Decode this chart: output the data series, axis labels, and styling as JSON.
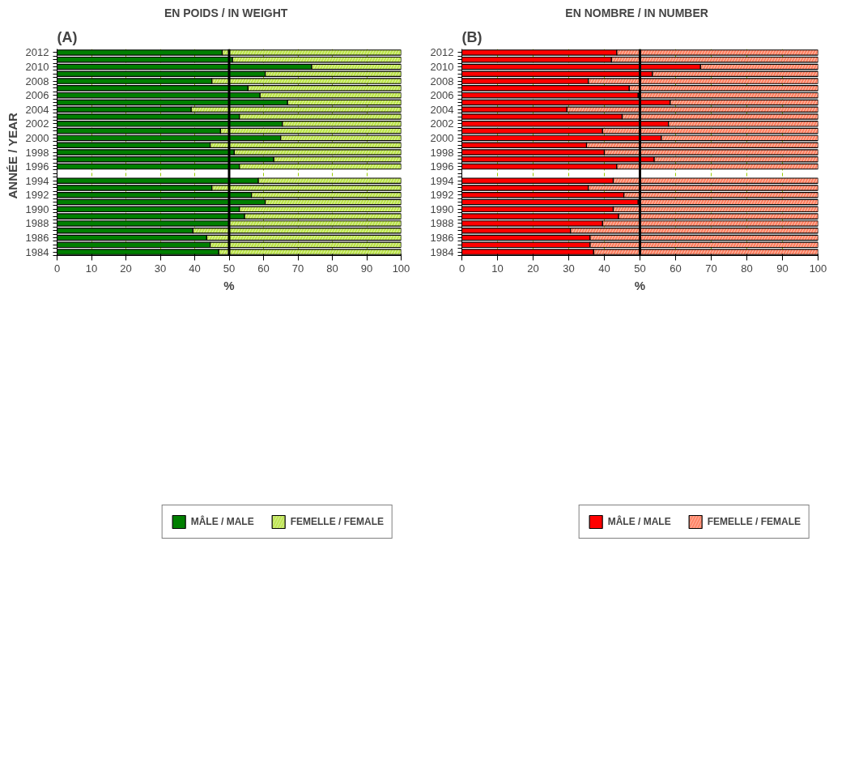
{
  "chart_data": [
    {
      "type": "bar",
      "orientation": "horizontal",
      "stacked": true,
      "title": "EN POIDS  /  IN WEIGHT",
      "xlabel": "%",
      "ylabel": "ANNÉE  /  YEAR",
      "annotations": [
        "(A)"
      ],
      "categories": [
        "2012",
        null,
        "2010",
        null,
        "2008",
        null,
        "2006",
        null,
        "2004",
        null,
        "2002",
        null,
        "2000",
        null,
        "1998",
        null,
        "1996",
        null,
        "1994",
        null,
        "1992",
        null,
        "1990",
        null,
        "1988",
        null,
        "1986",
        null,
        "1984"
      ],
      "series": [
        {
          "name": "MÂLE / MALE",
          "color": "#007f00",
          "values": [
            48,
            51,
            74,
            60.5,
            45,
            55.5,
            59,
            67,
            39,
            53,
            65.5,
            47.5,
            65,
            44.5,
            51.5,
            63,
            53,
            null,
            58.5,
            45,
            56.5,
            60.5,
            53,
            54.5,
            50,
            39.5,
            43.5,
            44.5,
            47
          ]
        },
        {
          "name": "FEMELLE / FEMALE",
          "color": "#bbe34a",
          "values": [
            52,
            49,
            26,
            39.5,
            55,
            44.5,
            41,
            33,
            61,
            47,
            34.5,
            52.5,
            35,
            55.5,
            48.5,
            37,
            47,
            null,
            41.5,
            55,
            43.5,
            39.5,
            47,
            45.5,
            50,
            60.5,
            56.5,
            55.5,
            53
          ]
        }
      ],
      "xlim": [
        0,
        100
      ],
      "xticks": [
        0,
        10,
        20,
        30,
        40,
        50,
        60,
        70,
        80,
        90,
        100
      ],
      "grid": "x",
      "legend": "bottom",
      "ref_lines": [
        {
          "axis": "x",
          "value": 50,
          "color": "#000000"
        }
      ]
    },
    {
      "type": "bar",
      "orientation": "horizontal",
      "stacked": true,
      "title": "EN NOMBRE  /  IN NUMBER",
      "xlabel": "%",
      "annotations": [
        "(B)"
      ],
      "categories": [
        "2012",
        null,
        "2010",
        null,
        "2008",
        null,
        "2006",
        null,
        "2004",
        null,
        "2002",
        null,
        "2000",
        null,
        "1998",
        null,
        "1996",
        null,
        "1994",
        null,
        "1992",
        null,
        "1990",
        null,
        "1988",
        null,
        "1986",
        null,
        "1984"
      ],
      "series": [
        {
          "name": "MÂLE / MALE",
          "color": "#ff0000",
          "values": [
            43.5,
            42,
            67,
            53.5,
            35.5,
            47,
            49.5,
            58.5,
            29.5,
            45,
            58,
            39.5,
            56,
            35,
            40,
            54,
            43.5,
            null,
            42.5,
            35.5,
            45.5,
            49.5,
            42.5,
            44,
            39.5,
            30.5,
            36,
            36,
            37
          ]
        },
        {
          "name": "FEMELLE / FEMALE",
          "color": "#ff7f60",
          "values": [
            56.5,
            58,
            33,
            46.5,
            64.5,
            53,
            50.5,
            41.5,
            70.5,
            55,
            42,
            60.5,
            44,
            65,
            60,
            46,
            56.5,
            null,
            57.5,
            64.5,
            54.5,
            50.5,
            57.5,
            56,
            60.5,
            69.5,
            64,
            64,
            63
          ]
        }
      ],
      "xlim": [
        0,
        100
      ],
      "xticks": [
        0,
        10,
        20,
        30,
        40,
        50,
        60,
        70,
        80,
        90,
        100
      ],
      "grid": "x",
      "legend": "bottom",
      "ref_lines": [
        {
          "axis": "x",
          "value": 50,
          "color": "#000000"
        }
      ]
    }
  ]
}
